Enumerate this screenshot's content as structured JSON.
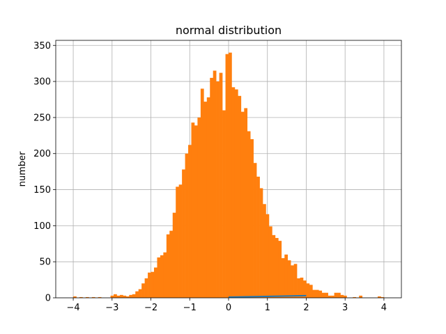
{
  "chart_data": {
    "type": "bar",
    "title": "normal distribution",
    "xlabel": "",
    "ylabel": "number",
    "xlim": [
      -4.45,
      4.45
    ],
    "ylim": [
      0,
      357
    ],
    "grid": true,
    "bin_width": 0.08,
    "x_ticks": [
      -4,
      -3,
      -2,
      -1,
      0,
      1,
      2,
      3,
      4
    ],
    "y_ticks": [
      0,
      50,
      100,
      150,
      200,
      250,
      300,
      350
    ],
    "colors": {
      "histogram": "#ff7f0e",
      "line": "#1f77b4",
      "grid": "#b0b0b0"
    },
    "histogram": {
      "bin_starts": [
        -4.0,
        -3.92,
        -3.84,
        -3.76,
        -3.68,
        -3.6,
        -3.52,
        -3.44,
        -3.36,
        -3.28,
        -3.2,
        -3.12,
        -3.04,
        -2.96,
        -2.88,
        -2.8,
        -2.72,
        -2.64,
        -2.56,
        -2.48,
        -2.4,
        -2.32,
        -2.24,
        -2.16,
        -2.08,
        -2.0,
        -1.92,
        -1.84,
        -1.76,
        -1.68,
        -1.6,
        -1.52,
        -1.44,
        -1.36,
        -1.28,
        -1.2,
        -1.12,
        -1.04,
        -0.96,
        -0.88,
        -0.8,
        -0.72,
        -0.64,
        -0.56,
        -0.48,
        -0.4,
        -0.32,
        -0.24,
        -0.16,
        -0.08,
        0.0,
        0.08,
        0.16,
        0.24,
        0.32,
        0.4,
        0.48,
        0.56,
        0.64,
        0.72,
        0.8,
        0.88,
        0.96,
        1.04,
        1.12,
        1.2,
        1.28,
        1.36,
        1.44,
        1.52,
        1.6,
        1.68,
        1.76,
        1.84,
        1.92,
        2.0,
        2.08,
        2.16,
        2.24,
        2.32,
        2.4,
        2.48,
        2.56,
        2.64,
        2.72,
        2.8,
        2.88,
        2.96,
        3.04,
        3.12,
        3.2,
        3.28,
        3.36,
        3.44,
        3.52,
        3.6,
        3.68,
        3.76,
        3.84,
        3.92
      ],
      "counts": [
        2,
        0,
        1,
        0,
        1,
        0,
        1,
        0,
        1,
        0,
        0,
        0,
        3,
        5,
        3,
        4,
        3,
        2,
        4,
        5,
        9,
        12,
        20,
        27,
        35,
        36,
        42,
        56,
        59,
        63,
        88,
        93,
        118,
        154,
        157,
        178,
        200,
        212,
        243,
        239,
        250,
        290,
        272,
        278,
        305,
        315,
        300,
        312,
        260,
        338,
        340,
        292,
        289,
        280,
        258,
        263,
        231,
        220,
        187,
        168,
        152,
        130,
        116,
        99,
        87,
        83,
        79,
        55,
        60,
        52,
        45,
        47,
        27,
        28,
        24,
        20,
        18,
        11,
        11,
        10,
        7,
        7,
        3,
        3,
        7,
        7,
        4,
        3,
        0,
        0,
        1,
        0,
        3,
        0,
        0,
        0,
        0,
        0,
        2,
        1
      ]
    },
    "line_series": {
      "x": [
        0,
        2
      ],
      "y": [
        1,
        3
      ]
    }
  }
}
